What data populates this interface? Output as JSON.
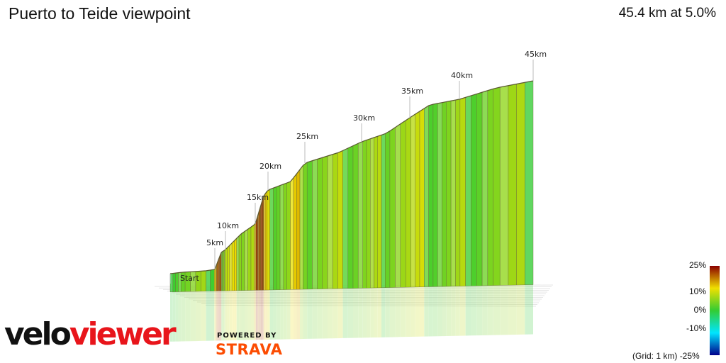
{
  "header": {
    "title": "Puerto to Teide viewpoint",
    "summary": "45.4 km at 5.0%"
  },
  "chart_data": {
    "type": "area",
    "title": "Puerto to Teide viewpoint",
    "distance_km": 45.4,
    "avg_gradient_pct": 5.0,
    "x_unit": "km",
    "km_markers": [
      {
        "label": "Start",
        "km": 0
      },
      {
        "label": "5km",
        "km": 5
      },
      {
        "label": "10km",
        "km": 10
      },
      {
        "label": "15km",
        "km": 15
      },
      {
        "label": "20km",
        "km": 20
      },
      {
        "label": "25km",
        "km": 25
      },
      {
        "label": "30km",
        "km": 30
      },
      {
        "label": "35km",
        "km": 35
      },
      {
        "label": "40km",
        "km": 40
      },
      {
        "label": "45km",
        "km": 45
      }
    ],
    "gradient_scale": {
      "min_pct": -25,
      "max_pct": 25,
      "tick_labels": [
        "25%",
        "10%",
        "0%",
        "-10%",
        "-25%"
      ],
      "colors": [
        "#00008b",
        "#00e5ff",
        "#33cc33",
        "#f0e000",
        "#8b0000"
      ]
    },
    "grid": true,
    "grid_note": "(Grid: 1 km)"
  },
  "branding": {
    "logo_part1": "velo",
    "logo_part2": "viewer",
    "powered_by": "POWERED BY",
    "strava": "STRAVA"
  }
}
